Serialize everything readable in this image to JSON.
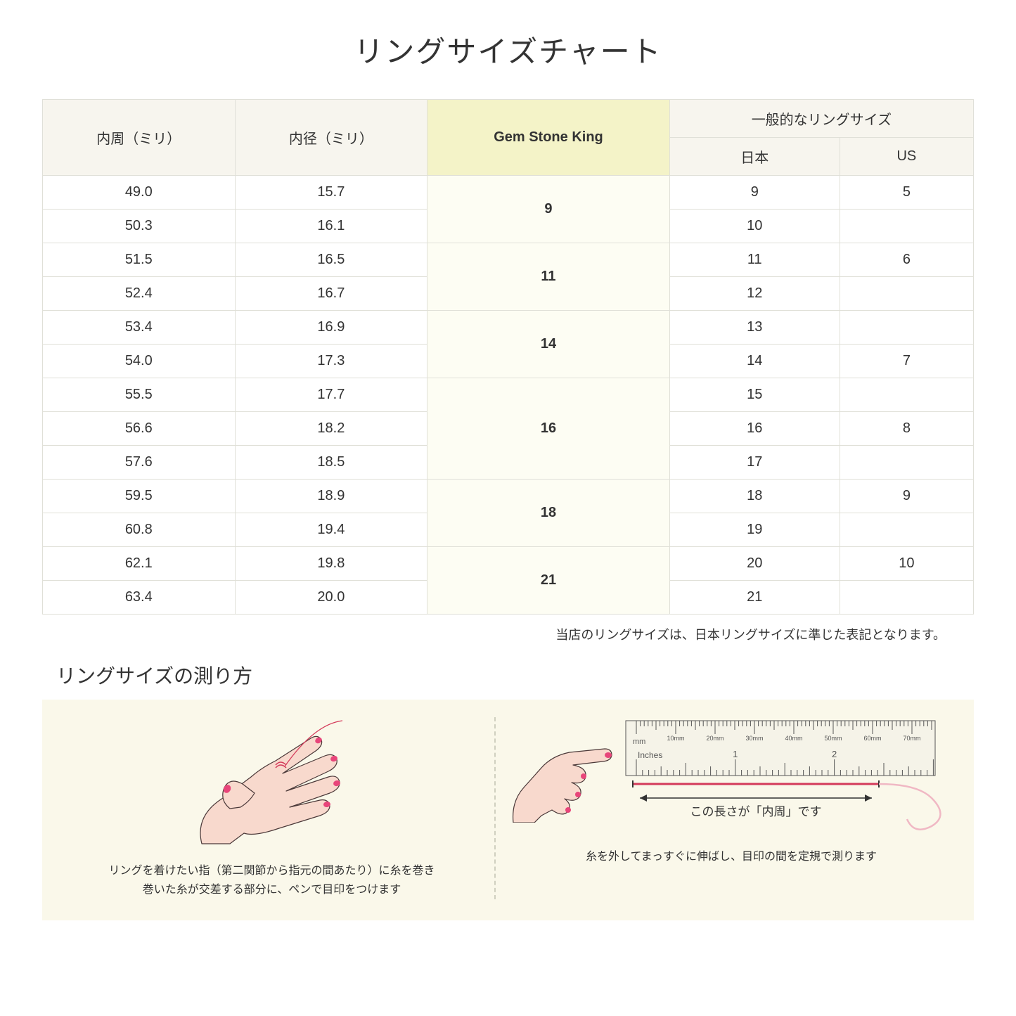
{
  "title": "リングサイズチャート",
  "table": {
    "headers": {
      "col1": "内周（ミリ）",
      "col2": "内径（ミリ）",
      "col3": "Gem Stone King",
      "col4_group": "一般的なリングサイズ",
      "col4a": "日本",
      "col4b": "US"
    },
    "groups": [
      {
        "gsk": "9",
        "rows": [
          {
            "circ": "49.0",
            "dia": "15.7",
            "jp": "9",
            "us": "5"
          },
          {
            "circ": "50.3",
            "dia": "16.1",
            "jp": "10",
            "us": ""
          }
        ]
      },
      {
        "gsk": "11",
        "rows": [
          {
            "circ": "51.5",
            "dia": "16.5",
            "jp": "11",
            "us": "6"
          },
          {
            "circ": "52.4",
            "dia": "16.7",
            "jp": "12",
            "us": ""
          }
        ]
      },
      {
        "gsk": "14",
        "rows": [
          {
            "circ": "53.4",
            "dia": "16.9",
            "jp": "13",
            "us": ""
          },
          {
            "circ": "54.0",
            "dia": "17.3",
            "jp": "14",
            "us": "7"
          }
        ]
      },
      {
        "gsk": "16",
        "rows": [
          {
            "circ": "55.5",
            "dia": "17.7",
            "jp": "15",
            "us": ""
          },
          {
            "circ": "56.6",
            "dia": "18.2",
            "jp": "16",
            "us": "8"
          },
          {
            "circ": "57.6",
            "dia": "18.5",
            "jp": "17",
            "us": ""
          }
        ]
      },
      {
        "gsk": "18",
        "rows": [
          {
            "circ": "59.5",
            "dia": "18.9",
            "jp": "18",
            "us": "9"
          },
          {
            "circ": "60.8",
            "dia": "19.4",
            "jp": "19",
            "us": ""
          }
        ]
      },
      {
        "gsk": "21",
        "rows": [
          {
            "circ": "62.1",
            "dia": "19.8",
            "jp": "20",
            "us": "10"
          },
          {
            "circ": "63.4",
            "dia": "20.0",
            "jp": "21",
            "us": ""
          }
        ]
      }
    ]
  },
  "note": "当店のリングサイズは、日本リングサイズに準じた表記となります。",
  "measure_title": "リングサイズの測り方",
  "instr1": "リングを着けたい指（第二関節から指元の間あたり）に糸を巻き\n巻いた糸が交差する部分に、ペンで目印をつけます",
  "instr2_label": "この長さが「内周」です",
  "instr2": "糸を外してまっすぐに伸ばし、目印の間を定規で測ります",
  "ruler": {
    "mm_label": "mm",
    "in_label": "Inches",
    "mm_ticks": [
      "10mm",
      "20mm",
      "30mm",
      "40mm",
      "50mm",
      "60mm",
      "70mm"
    ],
    "in_ticks": [
      "1",
      "2"
    ]
  },
  "colors": {
    "header_bg": "#f7f5ee",
    "highlight_header_bg": "#f4f3c8",
    "highlight_cell_bg": "#fdfdf3",
    "border": "#e0e0d8",
    "instr_bg": "#faf8ea",
    "hand_fill": "#f8d9cd",
    "hand_stroke": "#4a3838",
    "nail": "#e8457a",
    "thread": "#d43a5a",
    "ruler_bg": "#f5f3e8",
    "ruler_line": "#555"
  }
}
